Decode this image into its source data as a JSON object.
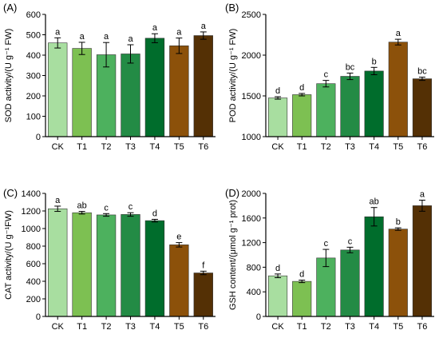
{
  "chart_data": [
    {
      "type": "bar",
      "panel": "(A)",
      "ylabel": "SOD activity/(U g⁻¹ FW)",
      "categories": [
        "CK",
        "T1",
        "T2",
        "T3",
        "T4",
        "T5",
        "T6"
      ],
      "values": [
        460,
        433,
        402,
        406,
        483,
        446,
        496
      ],
      "errors": [
        25,
        30,
        60,
        45,
        22,
        38,
        18
      ],
      "significance": [
        "a",
        "a",
        "a",
        "a",
        "a",
        "a",
        "a"
      ],
      "ylim": [
        0,
        600
      ],
      "yticks": [
        0,
        100,
        200,
        300,
        400,
        500,
        600
      ],
      "colors": [
        "#a8dea0",
        "#7dc052",
        "#4db15e",
        "#238b45",
        "#006d2c",
        "#8c510a",
        "#543005"
      ]
    },
    {
      "type": "bar",
      "panel": "(B)",
      "ylabel": "POD activity/(U g⁻¹ FW)",
      "categories": [
        "CK",
        "T1",
        "T2",
        "T3",
        "T4",
        "T5",
        "T6"
      ],
      "values": [
        1475,
        1515,
        1650,
        1740,
        1805,
        2160,
        1710
      ],
      "errors": [
        15,
        15,
        40,
        40,
        45,
        35,
        20
      ],
      "significance": [
        "d",
        "d",
        "c",
        "bc",
        "b",
        "a",
        "bc"
      ],
      "ylim": [
        1000,
        2500
      ],
      "yticks": [
        1000,
        1500,
        2000,
        2500
      ],
      "colors": [
        "#a8dea0",
        "#7dc052",
        "#4db15e",
        "#238b45",
        "#006d2c",
        "#8c510a",
        "#543005"
      ]
    },
    {
      "type": "bar",
      "panel": "(C)",
      "ylabel": "CAT activity/(U g⁻¹FW)",
      "categories": [
        "CK",
        "T1",
        "T2",
        "T3",
        "T4",
        "T5",
        "T6"
      ],
      "values": [
        1225,
        1180,
        1155,
        1160,
        1090,
        815,
        495
      ],
      "errors": [
        30,
        15,
        15,
        20,
        15,
        25,
        20
      ],
      "significance": [
        "a",
        "ab",
        "c",
        "c",
        "d",
        "e",
        "f"
      ],
      "ylim": [
        0,
        1400
      ],
      "yticks": [
        0,
        200,
        400,
        600,
        800,
        1000,
        1200,
        1400
      ],
      "colors": [
        "#a8dea0",
        "#7dc052",
        "#4db15e",
        "#238b45",
        "#006d2c",
        "#8c510a",
        "#543005"
      ]
    },
    {
      "type": "bar",
      "panel": "(D)",
      "ylabel": "GSH content/(μmol g⁻¹ prot)",
      "categories": [
        "CK",
        "T1",
        "T2",
        "T3",
        "T4",
        "T5",
        "T6"
      ],
      "values": [
        660,
        570,
        950,
        1080,
        1620,
        1420,
        1800
      ],
      "errors": [
        30,
        20,
        140,
        45,
        150,
        20,
        90
      ],
      "significance": [
        "d",
        "d",
        "c",
        "c",
        "ab",
        "b",
        "a"
      ],
      "ylim": [
        0,
        2000
      ],
      "yticks": [
        0,
        400,
        800,
        1200,
        1600,
        2000
      ],
      "colors": [
        "#a8dea0",
        "#7dc052",
        "#4db15e",
        "#238b45",
        "#006d2c",
        "#8c510a",
        "#543005"
      ]
    }
  ]
}
